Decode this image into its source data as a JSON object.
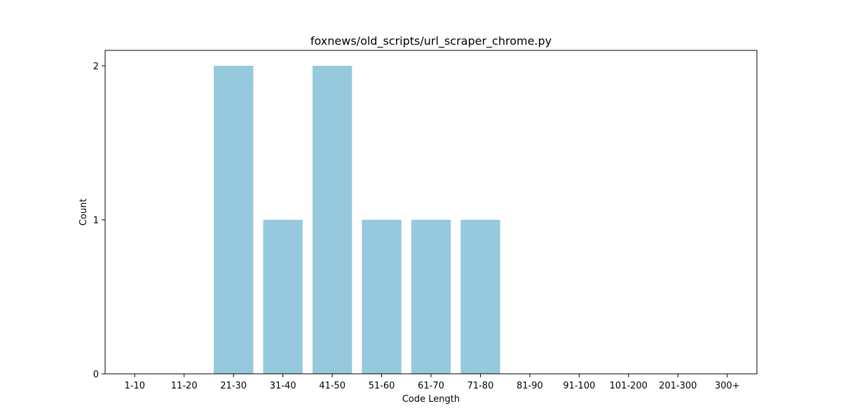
{
  "chart_data": {
    "type": "bar",
    "title": "foxnews/old_scripts/url_scraper_chrome.py",
    "xlabel": "Code Length",
    "ylabel": "Count",
    "categories": [
      "1-10",
      "11-20",
      "21-30",
      "31-40",
      "41-50",
      "51-60",
      "61-70",
      "71-80",
      "81-90",
      "91-100",
      "101-200",
      "201-300",
      "300+"
    ],
    "values": [
      0,
      0,
      2,
      1,
      2,
      1,
      1,
      1,
      0,
      0,
      0,
      0,
      0
    ],
    "ylim": [
      0,
      2.1
    ],
    "yticks": [
      0,
      1,
      2
    ],
    "grid": false,
    "colors": {
      "bar": "#96c9dd",
      "axis": "#000000",
      "background": "#ffffff"
    }
  }
}
